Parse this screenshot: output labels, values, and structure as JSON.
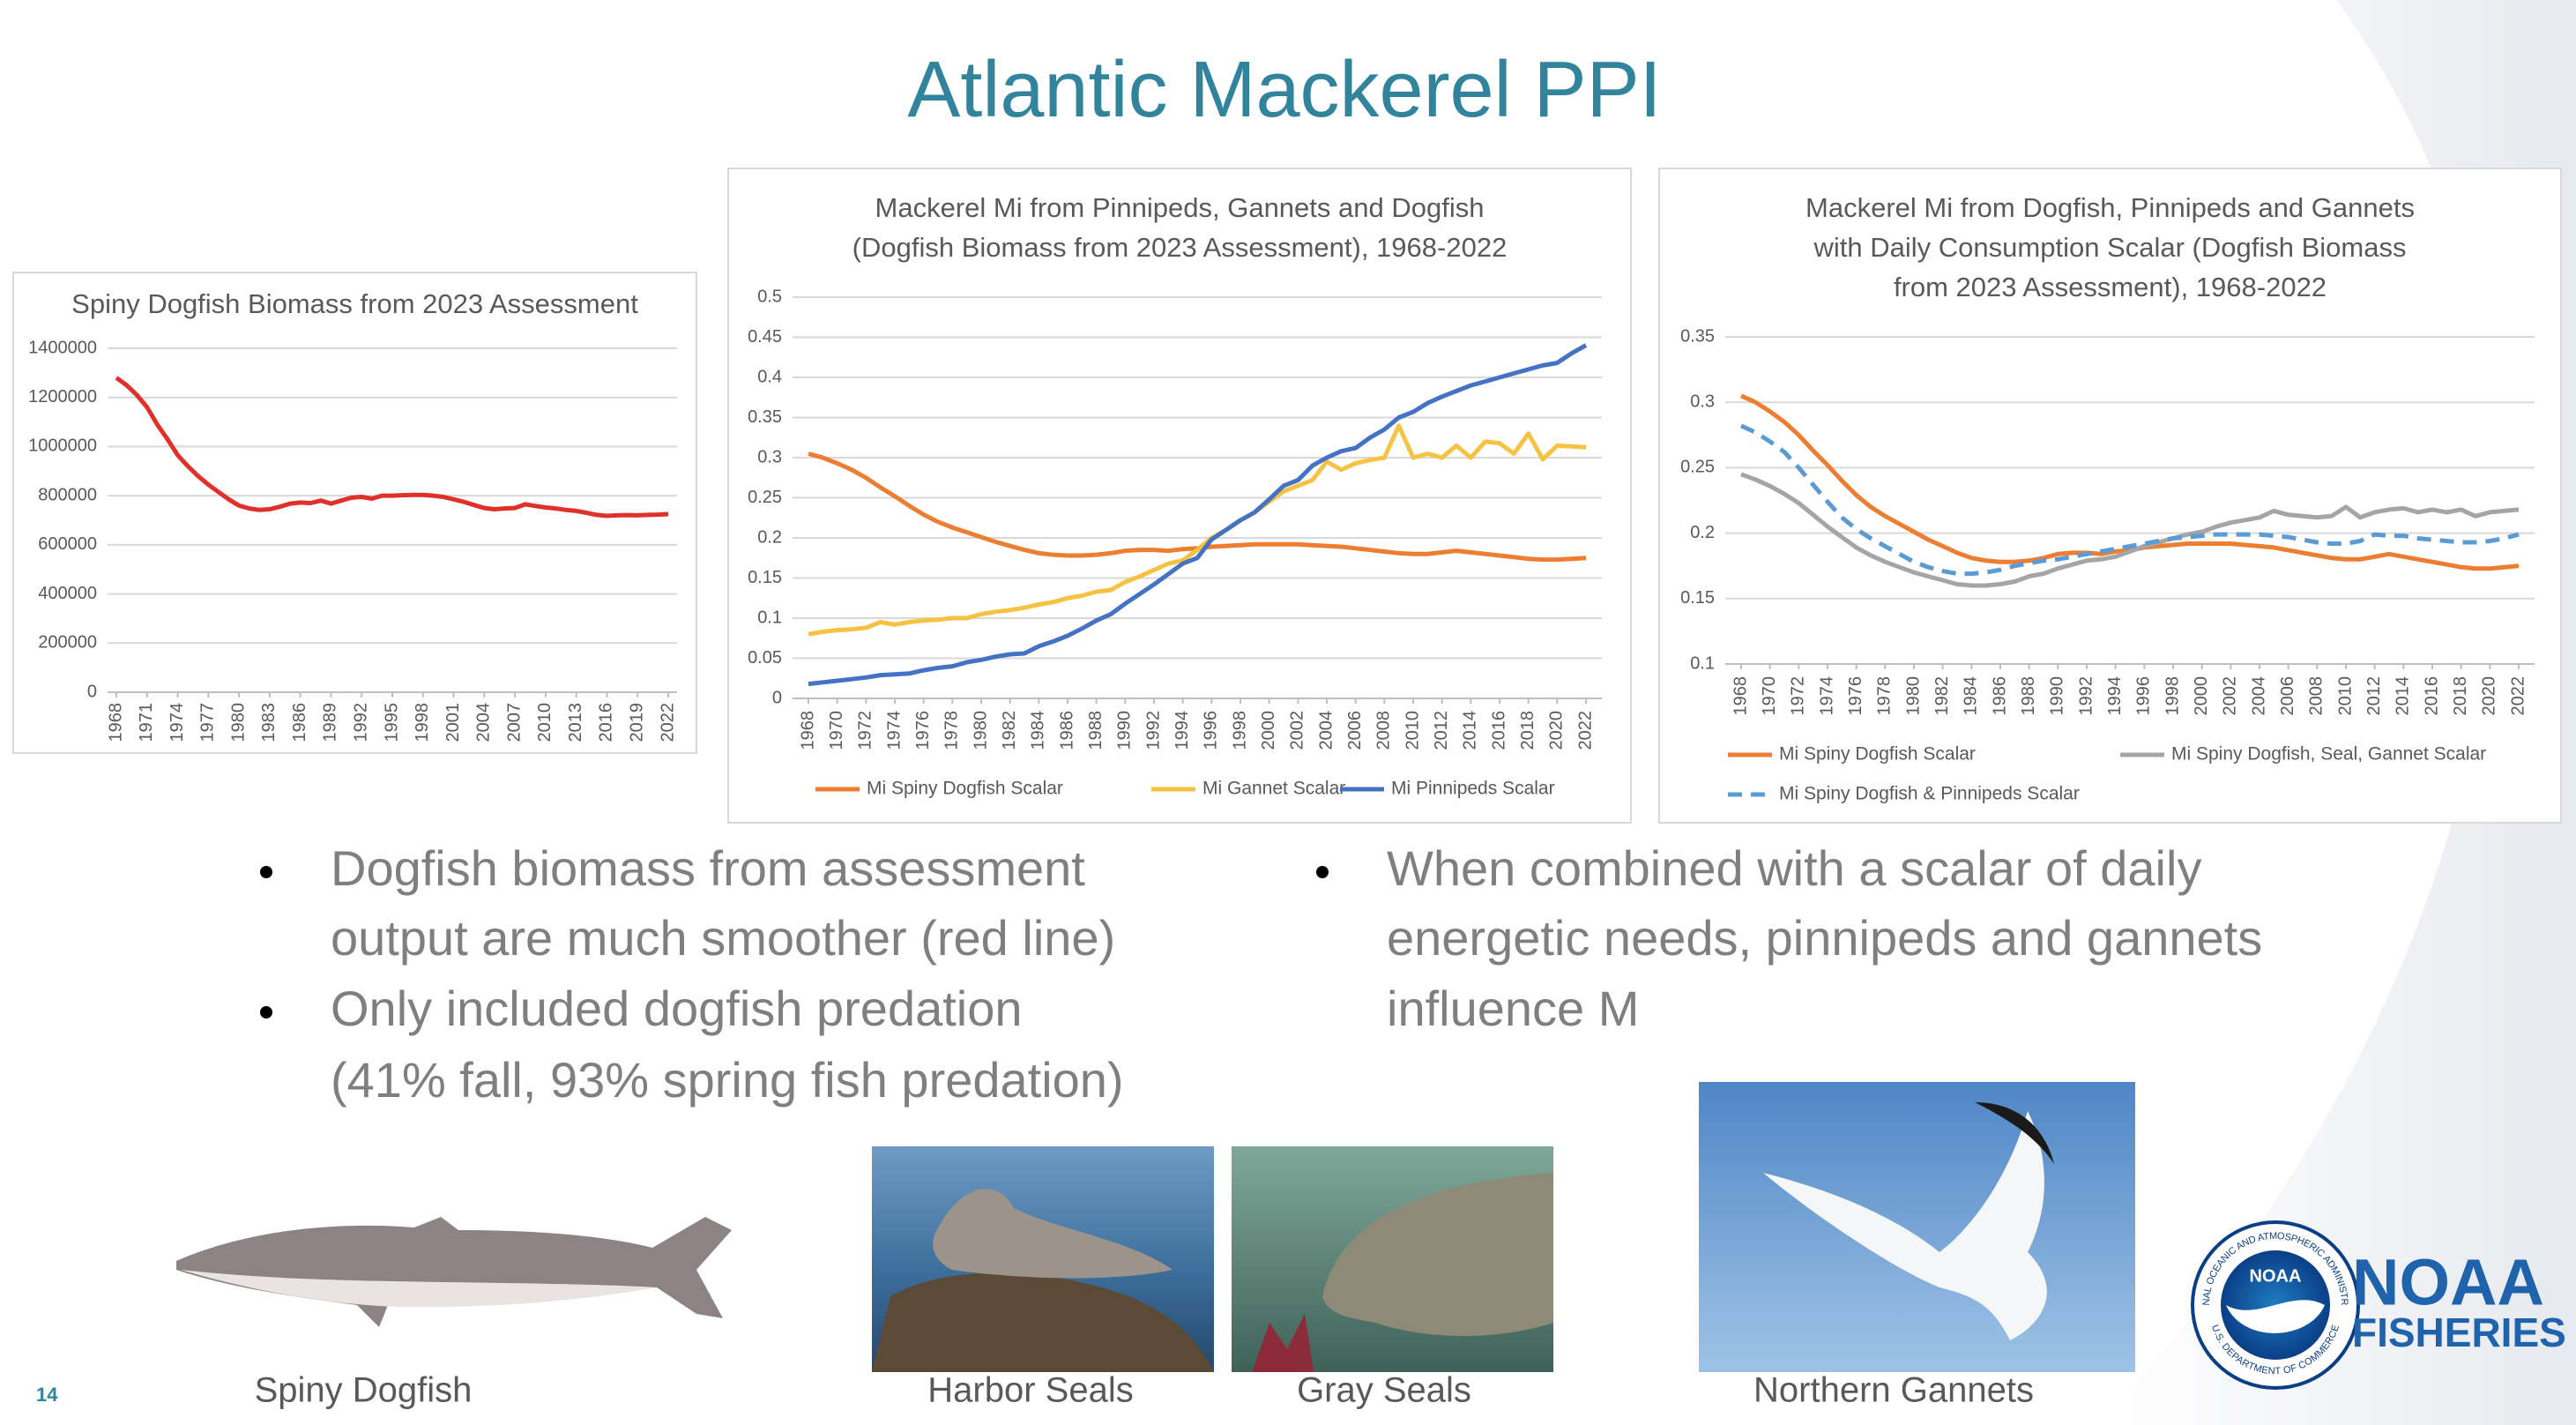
{
  "slide": {
    "title": "Atlantic Mackerel PPI",
    "page_number": "14",
    "bullets_left": [
      {
        "lines": [
          "Dogfish biomass from assessment",
          "output are much smoother (red line)"
        ]
      },
      {
        "lines": [
          "Only included dogfish predation",
          "(41% fall, 93% spring fish predation)"
        ]
      }
    ],
    "bullets_right": [
      {
        "lines": [
          "When combined with a scalar of daily",
          "energetic needs, pinnipeds and gannets",
          "influence M"
        ]
      }
    ],
    "captions": [
      "Spiny Dogfish",
      "Harbor Seals",
      "Gray Seals",
      "Northern Gannets"
    ],
    "logo": {
      "emblem": "NOAA",
      "ring_top": "NATIONAL OCEANIC AND ATMOSPHERIC ADMINISTRATION",
      "ring_bottom": "U.S. DEPARTMENT OF COMMERCE",
      "name": "NOAA",
      "division": "FISHERIES"
    }
  },
  "chart_data": [
    {
      "type": "line",
      "title": [
        "Spiny Dogfish Biomass from 2023 Assessment"
      ],
      "x": [
        1968,
        1969,
        1970,
        1971,
        1972,
        1973,
        1974,
        1975,
        1976,
        1977,
        1978,
        1979,
        1980,
        1981,
        1982,
        1983,
        1984,
        1985,
        1986,
        1987,
        1988,
        1989,
        1990,
        1991,
        1992,
        1993,
        1994,
        1995,
        1996,
        1997,
        1998,
        1999,
        2000,
        2001,
        2002,
        2003,
        2004,
        2005,
        2006,
        2007,
        2008,
        2009,
        2010,
        2011,
        2012,
        2013,
        2014,
        2015,
        2016,
        2017,
        2018,
        2019,
        2020,
        2021,
        2022
      ],
      "values": [
        1280000,
        1250000,
        1210000,
        1160000,
        1090000,
        1030000,
        965000,
        920000,
        880000,
        845000,
        815000,
        785000,
        760000,
        748000,
        742000,
        745000,
        755000,
        768000,
        772000,
        770000,
        780000,
        768000,
        780000,
        792000,
        795000,
        788000,
        800000,
        800000,
        802000,
        803000,
        803000,
        800000,
        795000,
        785000,
        775000,
        762000,
        750000,
        745000,
        748000,
        750000,
        765000,
        758000,
        752000,
        748000,
        742000,
        738000,
        730000,
        722000,
        718000,
        720000,
        721000,
        720000,
        722000,
        723000,
        725000
      ],
      "color": "#e0302a",
      "xlim": [
        1968,
        2022
      ],
      "xticks": [
        1968,
        1971,
        1974,
        1977,
        1980,
        1983,
        1986,
        1989,
        1992,
        1995,
        1998,
        2001,
        2004,
        2007,
        2010,
        2013,
        2016,
        2019,
        2022
      ],
      "ylim": [
        0,
        1400000
      ],
      "yticks": [
        0,
        200000,
        400000,
        600000,
        800000,
        1000000,
        1200000,
        1400000
      ],
      "grid": true
    },
    {
      "type": "line",
      "title": [
        "Mackerel Mi from Pinnipeds, Gannets and Dogfish",
        "(Dogfish Biomass from 2023 Assessment), 1968-2022"
      ],
      "x": [
        1968,
        1969,
        1970,
        1971,
        1972,
        1973,
        1974,
        1975,
        1976,
        1977,
        1978,
        1979,
        1980,
        1981,
        1982,
        1983,
        1984,
        1985,
        1986,
        1987,
        1988,
        1989,
        1990,
        1991,
        1992,
        1993,
        1994,
        1995,
        1996,
        1997,
        1998,
        1999,
        2000,
        2001,
        2002,
        2003,
        2004,
        2005,
        2006,
        2007,
        2008,
        2009,
        2010,
        2011,
        2012,
        2013,
        2014,
        2015,
        2016,
        2017,
        2018,
        2019,
        2020,
        2021,
        2022
      ],
      "series": [
        {
          "name": "Mi Spiny Dogfish Scalar",
          "color": "#ed7d31",
          "values": [
            0.305,
            0.3,
            0.293,
            0.285,
            0.275,
            0.263,
            0.252,
            0.24,
            0.229,
            0.22,
            0.213,
            0.207,
            0.201,
            0.195,
            0.19,
            0.185,
            0.181,
            0.179,
            0.178,
            0.178,
            0.179,
            0.181,
            0.184,
            0.185,
            0.185,
            0.184,
            0.186,
            0.187,
            0.189,
            0.19,
            0.191,
            0.192,
            0.192,
            0.192,
            0.192,
            0.191,
            0.19,
            0.189,
            0.187,
            0.185,
            0.183,
            0.181,
            0.18,
            0.18,
            0.182,
            0.184,
            0.182,
            0.18,
            0.178,
            0.176,
            0.174,
            0.173,
            0.173,
            0.174,
            0.175
          ]
        },
        {
          "name": "Mi Gannet Scalar",
          "color": "#f6c244",
          "values": [
            0.08,
            0.083,
            0.085,
            0.086,
            0.088,
            0.095,
            0.092,
            0.095,
            0.097,
            0.098,
            0.1,
            0.1,
            0.105,
            0.108,
            0.11,
            0.113,
            0.117,
            0.12,
            0.125,
            0.128,
            0.133,
            0.135,
            0.145,
            0.152,
            0.16,
            0.168,
            0.172,
            0.185,
            0.2,
            0.21,
            0.222,
            0.232,
            0.245,
            0.258,
            0.265,
            0.272,
            0.295,
            0.285,
            0.293,
            0.297,
            0.3,
            0.34,
            0.3,
            0.305,
            0.3,
            0.315,
            0.3,
            0.32,
            0.318,
            0.305,
            0.33,
            0.298,
            0.315,
            0.314,
            0.313
          ]
        },
        {
          "name": "Mi Pinnipeds Scalar",
          "color": "#4472c4",
          "values": [
            0.018,
            0.02,
            0.022,
            0.024,
            0.026,
            0.029,
            0.03,
            0.031,
            0.035,
            0.038,
            0.04,
            0.045,
            0.048,
            0.052,
            0.055,
            0.056,
            0.065,
            0.071,
            0.078,
            0.087,
            0.097,
            0.105,
            0.118,
            0.13,
            0.142,
            0.155,
            0.168,
            0.175,
            0.198,
            0.21,
            0.222,
            0.232,
            0.248,
            0.265,
            0.272,
            0.29,
            0.3,
            0.308,
            0.312,
            0.325,
            0.335,
            0.35,
            0.357,
            0.368,
            0.376,
            0.383,
            0.39,
            0.395,
            0.4,
            0.405,
            0.41,
            0.415,
            0.418,
            0.43,
            0.44
          ]
        }
      ],
      "xlim": [
        1968,
        2022
      ],
      "xticks": [
        1968,
        1970,
        1972,
        1974,
        1976,
        1978,
        1980,
        1982,
        1984,
        1986,
        1988,
        1990,
        1992,
        1994,
        1996,
        1998,
        2000,
        2002,
        2004,
        2006,
        2008,
        2010,
        2012,
        2014,
        2016,
        2018,
        2020,
        2022
      ],
      "ylim": [
        0,
        0.5
      ],
      "yticks": [
        0,
        0.05,
        0.1,
        0.15,
        0.2,
        0.25,
        0.3,
        0.35,
        0.4,
        0.45,
        0.5
      ],
      "grid": true,
      "legend": "bottom"
    },
    {
      "type": "line",
      "title": [
        "Mackerel Mi from Dogfish, Pinnipeds and Gannets",
        "with Daily Consumption Scalar (Dogfish Biomass",
        "from 2023 Assessment), 1968-2022"
      ],
      "x": [
        1968,
        1969,
        1970,
        1971,
        1972,
        1973,
        1974,
        1975,
        1976,
        1977,
        1978,
        1979,
        1980,
        1981,
        1982,
        1983,
        1984,
        1985,
        1986,
        1987,
        1988,
        1989,
        1990,
        1991,
        1992,
        1993,
        1994,
        1995,
        1996,
        1997,
        1998,
        1999,
        2000,
        2001,
        2002,
        2003,
        2004,
        2005,
        2006,
        2007,
        2008,
        2009,
        2010,
        2011,
        2012,
        2013,
        2014,
        2015,
        2016,
        2017,
        2018,
        2019,
        2020,
        2021,
        2022
      ],
      "series": [
        {
          "name": "Mi Spiny Dogfish Scalar",
          "color": "#ed7d31",
          "values": [
            0.305,
            0.3,
            0.293,
            0.285,
            0.275,
            0.263,
            0.252,
            0.24,
            0.229,
            0.22,
            0.213,
            0.207,
            0.201,
            0.195,
            0.19,
            0.185,
            0.181,
            0.179,
            0.178,
            0.178,
            0.179,
            0.181,
            0.184,
            0.185,
            0.185,
            0.184,
            0.186,
            0.187,
            0.189,
            0.19,
            0.191,
            0.192,
            0.192,
            0.192,
            0.192,
            0.191,
            0.19,
            0.189,
            0.187,
            0.185,
            0.183,
            0.181,
            0.18,
            0.18,
            0.182,
            0.184,
            0.182,
            0.18,
            0.178,
            0.176,
            0.174,
            0.173,
            0.173,
            0.174,
            0.175
          ]
        },
        {
          "name": "Mi Spiny Dogfish, Seal, Gannet Scalar",
          "color": "#a5a5a5",
          "values": [
            0.245,
            0.241,
            0.236,
            0.23,
            0.223,
            0.214,
            0.205,
            0.197,
            0.189,
            0.183,
            0.178,
            0.174,
            0.17,
            0.167,
            0.164,
            0.161,
            0.16,
            0.16,
            0.161,
            0.163,
            0.167,
            0.169,
            0.173,
            0.176,
            0.179,
            0.18,
            0.182,
            0.186,
            0.19,
            0.193,
            0.196,
            0.199,
            0.201,
            0.205,
            0.208,
            0.21,
            0.212,
            0.217,
            0.214,
            0.213,
            0.212,
            0.213,
            0.22,
            0.212,
            0.216,
            0.218,
            0.219,
            0.216,
            0.218,
            0.216,
            0.218,
            0.213,
            0.216,
            0.217,
            0.218
          ]
        },
        {
          "name": "Mi Spiny Dogfish & Pinnipeds Scalar",
          "color": "#5b9bd5",
          "dashed": true,
          "values": [
            0.282,
            0.277,
            0.27,
            0.262,
            0.25,
            0.237,
            0.224,
            0.212,
            0.203,
            0.196,
            0.19,
            0.184,
            0.178,
            0.174,
            0.171,
            0.169,
            0.169,
            0.17,
            0.172,
            0.175,
            0.177,
            0.179,
            0.18,
            0.182,
            0.184,
            0.186,
            0.188,
            0.19,
            0.192,
            0.194,
            0.196,
            0.197,
            0.198,
            0.199,
            0.199,
            0.199,
            0.199,
            0.198,
            0.197,
            0.195,
            0.193,
            0.192,
            0.192,
            0.194,
            0.199,
            0.198,
            0.198,
            0.196,
            0.195,
            0.194,
            0.193,
            0.193,
            0.194,
            0.196,
            0.199
          ]
        }
      ],
      "xlim": [
        1968,
        2022
      ],
      "xticks": [
        1968,
        1970,
        1972,
        1974,
        1976,
        1978,
        1980,
        1982,
        1984,
        1986,
        1988,
        1990,
        1992,
        1994,
        1996,
        1998,
        2000,
        2002,
        2004,
        2006,
        2008,
        2010,
        2012,
        2014,
        2016,
        2018,
        2020,
        2022
      ],
      "ylim": [
        0.1,
        0.35
      ],
      "yticks": [
        0.1,
        0.15,
        0.2,
        0.25,
        0.3,
        0.35
      ],
      "grid": true,
      "legend": "bottom"
    }
  ]
}
